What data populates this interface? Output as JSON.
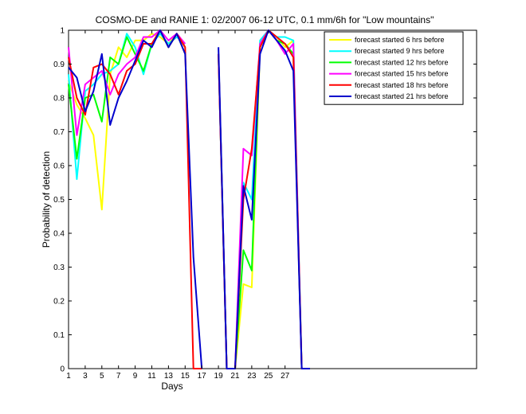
{
  "chart_data": {
    "type": "line",
    "title": "COSMO-DE and RANIE 1: 02/2007 06-12 UTC, 0.1 mm/6h for \"Low mountains\"",
    "xlabel": "Days",
    "ylabel": "Probability of detection",
    "xlim": [
      1,
      50
    ],
    "ylim": [
      0,
      1
    ],
    "x_ticks": [
      1,
      3,
      5,
      7,
      9,
      11,
      13,
      15,
      17,
      19,
      21,
      23,
      25,
      27
    ],
    "y_ticks": [
      0,
      0.1,
      0.2,
      0.3,
      0.4,
      0.5,
      0.6,
      0.7,
      0.8,
      0.9,
      1
    ],
    "grid": false,
    "legend_position": "top-right",
    "x": [
      1,
      2,
      3,
      4,
      5,
      6,
      7,
      8,
      9,
      10,
      11,
      12,
      13,
      14,
      15,
      16,
      17,
      18,
      19,
      20,
      21,
      22,
      23,
      24,
      25,
      26,
      27,
      28,
      29,
      30
    ],
    "series": [
      {
        "name": "forecast started 6 hrs before",
        "color": "#ffff00",
        "values": [
          0.85,
          0.78,
          0.74,
          0.69,
          0.47,
          0.87,
          0.95,
          0.92,
          0.97,
          0.97,
          0.99,
          0.98,
          0.96,
          0.99,
          0.93,
          null,
          null,
          null,
          0.93,
          0.0,
          0.0,
          0.25,
          0.24,
          0.95,
          1.0,
          0.98,
          0.95,
          0.97,
          0.0,
          0.0
        ]
      },
      {
        "name": "forecast started 9 hrs before",
        "color": "#00ffff",
        "values": [
          0.87,
          0.56,
          0.82,
          0.84,
          0.87,
          0.88,
          0.9,
          0.99,
          0.95,
          0.87,
          0.96,
          0.99,
          0.96,
          0.98,
          0.96,
          null,
          null,
          null,
          0.93,
          0.0,
          0.0,
          0.55,
          0.5,
          0.97,
          1.0,
          0.98,
          0.98,
          0.97,
          0.0,
          0.0
        ]
      },
      {
        "name": "forecast started 12 hrs before",
        "color": "#00ff00",
        "values": [
          0.84,
          0.62,
          0.8,
          0.81,
          0.73,
          0.92,
          0.9,
          0.98,
          0.93,
          0.88,
          0.96,
          1.0,
          0.95,
          0.99,
          0.95,
          null,
          null,
          null,
          0.93,
          0.0,
          0.0,
          0.35,
          0.29,
          0.96,
          1.0,
          0.97,
          0.96,
          0.93,
          0.0,
          0.0
        ]
      },
      {
        "name": "forecast started 15 hrs before",
        "color": "#ff00ff",
        "values": [
          0.95,
          0.69,
          0.84,
          0.86,
          0.88,
          0.81,
          0.87,
          0.9,
          0.92,
          0.98,
          0.98,
          1.0,
          0.97,
          0.99,
          0.96,
          null,
          null,
          null,
          0.93,
          0.0,
          0.0,
          0.65,
          0.63,
          0.96,
          1.0,
          0.97,
          0.93,
          0.96,
          0.0,
          0.0
        ]
      },
      {
        "name": "forecast started 18 hrs before",
        "color": "#ff0000",
        "values": [
          0.92,
          0.8,
          0.75,
          0.89,
          0.9,
          0.87,
          0.81,
          0.88,
          0.9,
          0.96,
          0.96,
          1.0,
          0.95,
          0.99,
          0.95,
          0.0,
          0.0,
          null,
          0.93,
          0.0,
          0.0,
          0.5,
          0.65,
          0.95,
          1.0,
          0.98,
          0.96,
          0.92,
          0.0,
          0.0
        ]
      },
      {
        "name": "forecast started 21 hrs before",
        "color": "#0000cc",
        "values": [
          0.89,
          0.86,
          0.76,
          0.82,
          0.93,
          0.72,
          0.8,
          0.85,
          0.91,
          0.97,
          0.95,
          1.0,
          0.95,
          0.99,
          0.93,
          0.33,
          0.0,
          null,
          0.95,
          0.0,
          0.0,
          0.54,
          0.44,
          0.93,
          1.0,
          0.97,
          0.94,
          0.88,
          0.0,
          0.0
        ]
      }
    ]
  }
}
